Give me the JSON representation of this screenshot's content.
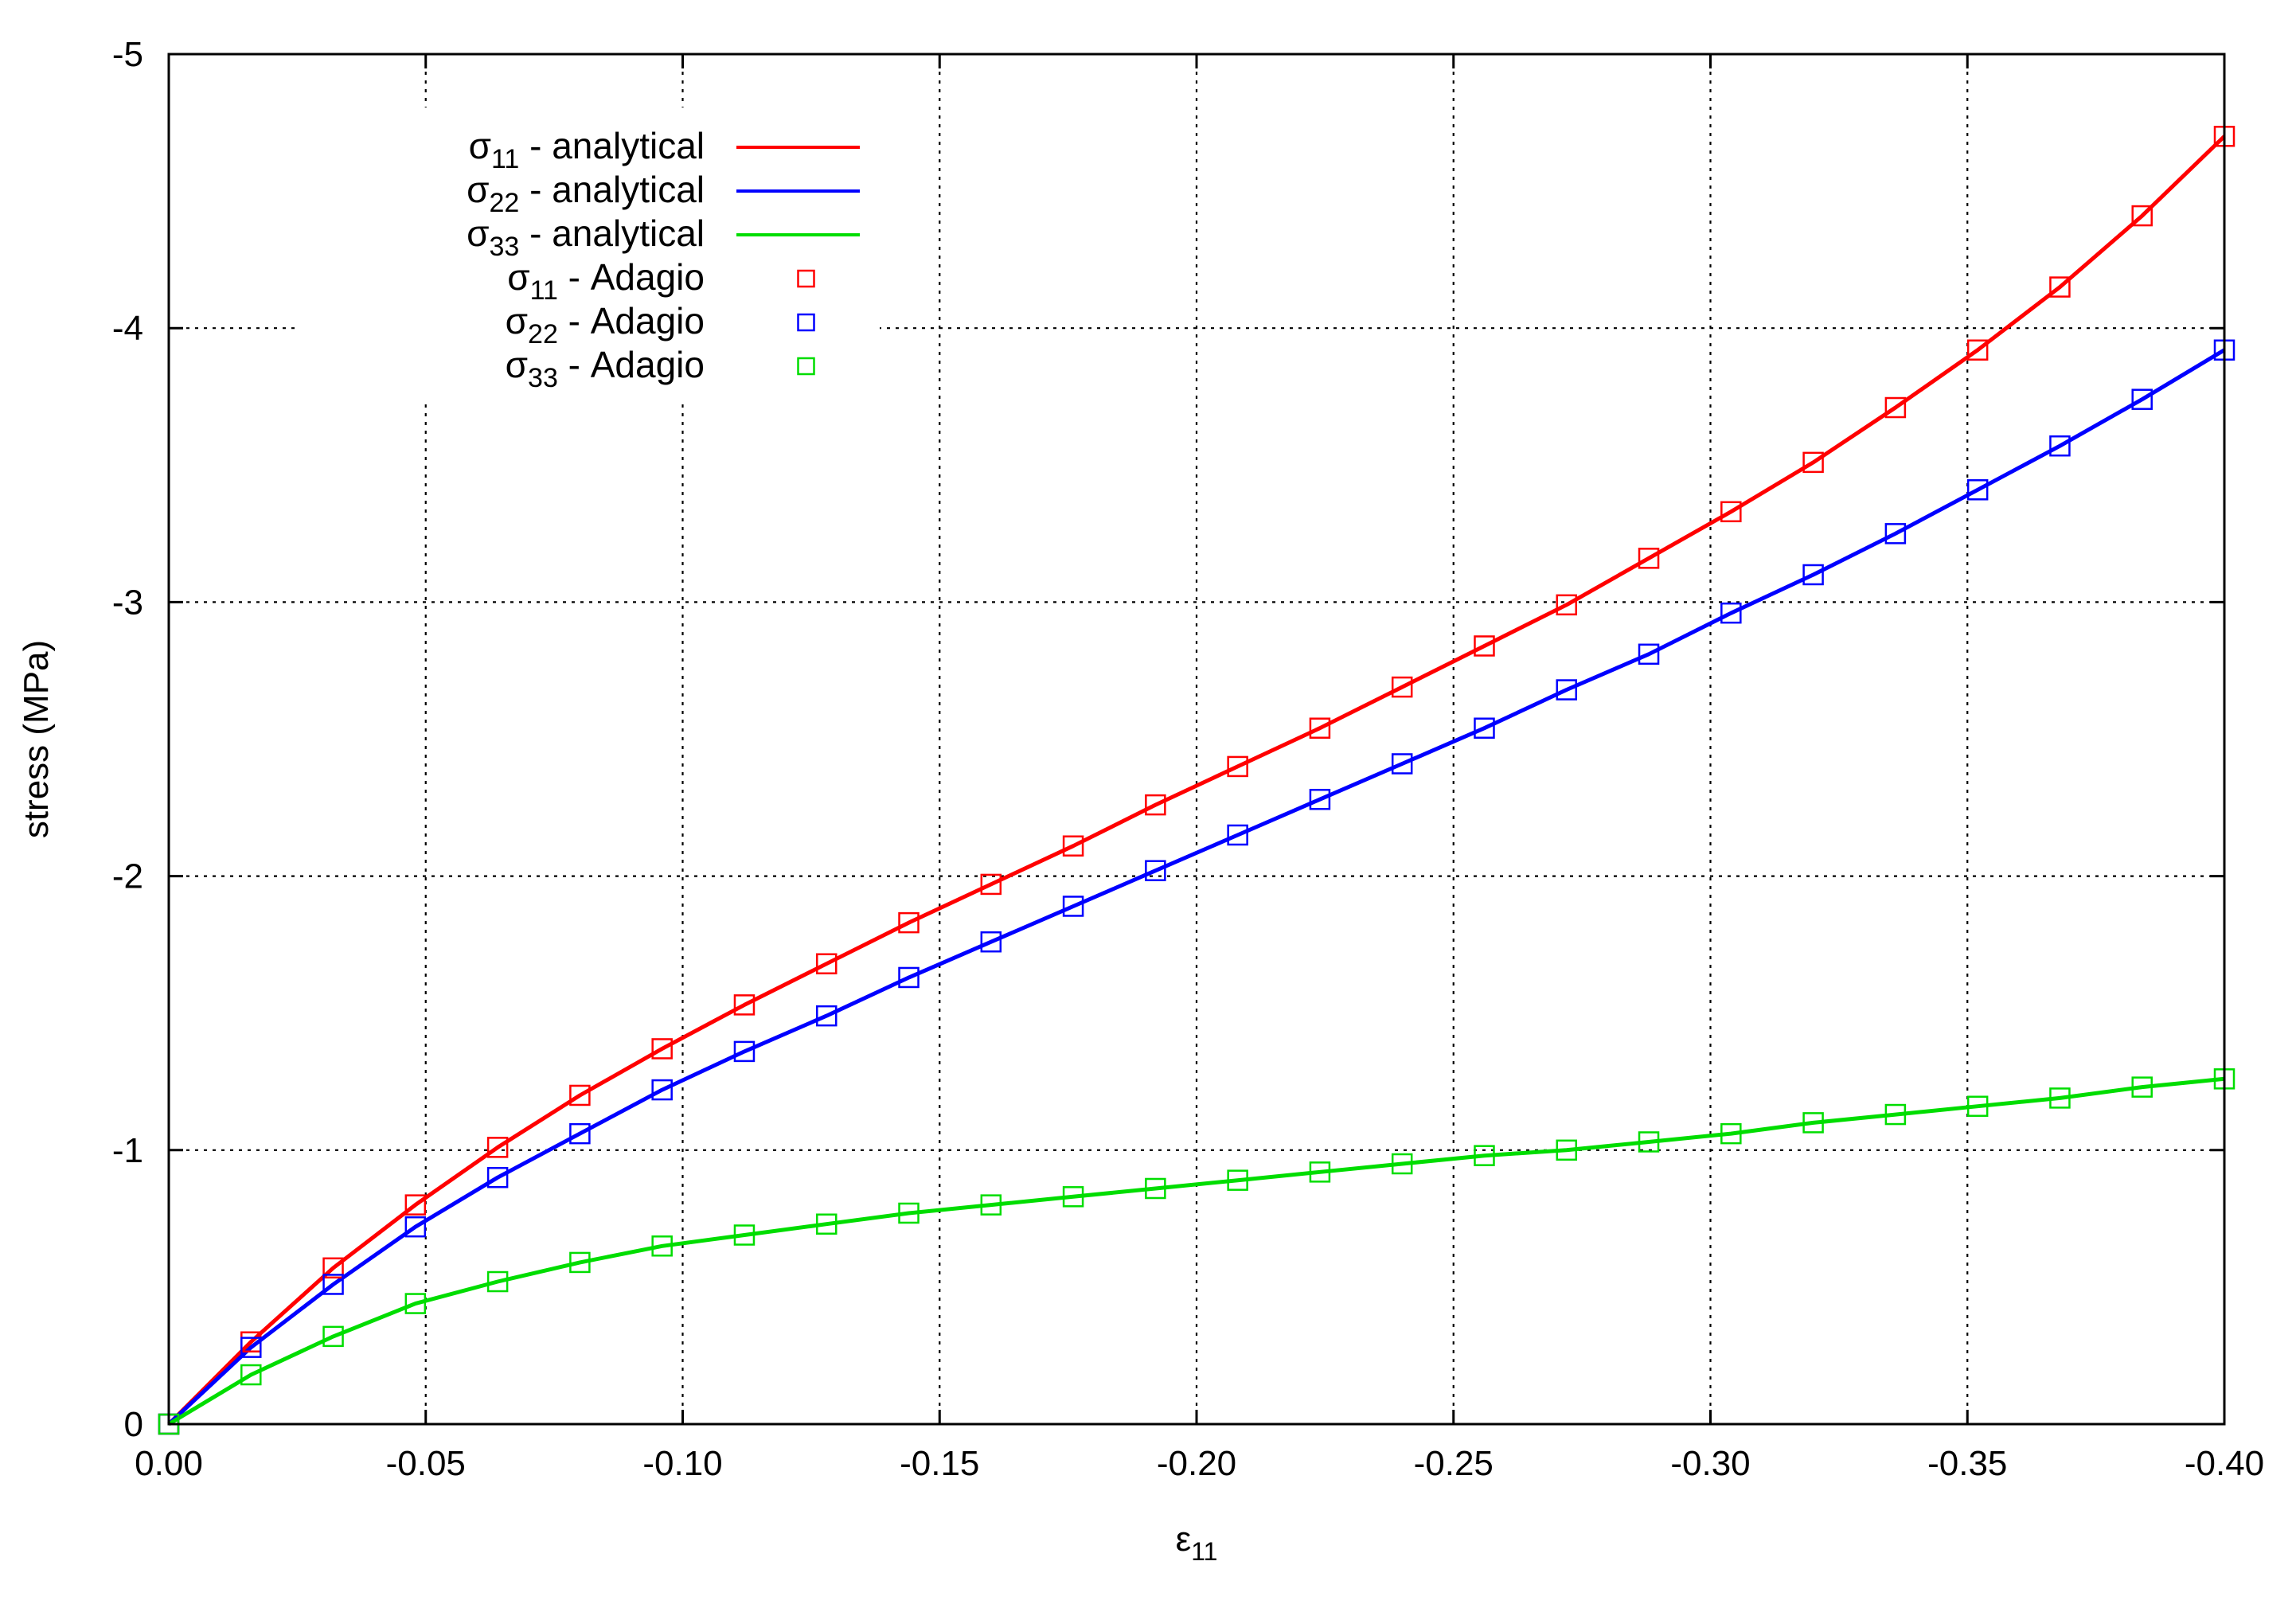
{
  "chart_data": {
    "type": "line",
    "title": "",
    "xlabel": "ε",
    "xlabel_sub": "11",
    "ylabel": "stress (MPa)",
    "xlim": [
      0.0,
      -0.4
    ],
    "ylim": [
      0,
      -5
    ],
    "x_ticks": [
      0.0,
      -0.05,
      -0.1,
      -0.15,
      -0.2,
      -0.25,
      -0.3,
      -0.35,
      -0.4
    ],
    "x_tick_labels": [
      "0.00",
      "-0.05",
      "-0.10",
      "-0.15",
      "-0.20",
      "-0.25",
      "-0.30",
      "-0.35",
      "-0.40"
    ],
    "y_ticks": [
      0,
      -1,
      -2,
      -3,
      -4,
      -5
    ],
    "y_tick_labels": [
      "0",
      "-1",
      "-2",
      "-3",
      "-4",
      "-5"
    ],
    "grid": true,
    "legend_position": "top-left",
    "x": [
      0,
      -0.016,
      -0.032,
      -0.048,
      -0.064,
      -0.08,
      -0.096,
      -0.112,
      -0.128,
      -0.144,
      -0.16,
      -0.176,
      -0.192,
      -0.208,
      -0.224,
      -0.24,
      -0.256,
      -0.272,
      -0.288,
      -0.304,
      -0.32,
      -0.336,
      -0.352,
      -0.368,
      -0.384,
      -0.4
    ],
    "series": [
      {
        "name": "σ",
        "name_sub": "11",
        "name_suffix": " - analytical",
        "style": "line",
        "color": "#ff0000",
        "values": [
          0,
          -0.3,
          -0.57,
          -0.8,
          -1.01,
          -1.2,
          -1.37,
          -1.53,
          -1.68,
          -1.83,
          -1.97,
          -2.11,
          -2.26,
          -2.4,
          -2.54,
          -2.69,
          -2.84,
          -2.99,
          -3.16,
          -3.33,
          -3.51,
          -3.71,
          -3.92,
          -4.15,
          -4.41,
          -4.7
        ]
      },
      {
        "name": "σ",
        "name_sub": "22",
        "name_suffix": " - analytical",
        "style": "line",
        "color": "#0000ff",
        "values": [
          0,
          -0.28,
          -0.51,
          -0.72,
          -0.9,
          -1.06,
          -1.22,
          -1.36,
          -1.49,
          -1.63,
          -1.76,
          -1.89,
          -2.02,
          -2.15,
          -2.28,
          -2.41,
          -2.54,
          -2.68,
          -2.81,
          -2.96,
          -3.1,
          -3.25,
          -3.41,
          -3.57,
          -3.74,
          -3.92
        ]
      },
      {
        "name": "σ",
        "name_sub": "33",
        "name_suffix": " - analytical",
        "style": "line",
        "color": "#00dd00",
        "values": [
          0,
          -0.18,
          -0.32,
          -0.44,
          -0.52,
          -0.59,
          -0.65,
          -0.69,
          -0.73,
          -0.77,
          -0.8,
          -0.83,
          -0.86,
          -0.89,
          -0.92,
          -0.95,
          -0.98,
          -1.0,
          -1.03,
          -1.06,
          -1.1,
          -1.13,
          -1.16,
          -1.19,
          -1.23,
          -1.26
        ]
      },
      {
        "name": "σ",
        "name_sub": "11",
        "name_suffix": " - Adagio",
        "style": "markers",
        "color": "#ff0000",
        "values": [
          0,
          -0.3,
          -0.57,
          -0.8,
          -1.01,
          -1.2,
          -1.37,
          -1.53,
          -1.68,
          -1.83,
          -1.97,
          -2.11,
          -2.26,
          -2.4,
          -2.54,
          -2.69,
          -2.84,
          -2.99,
          -3.16,
          -3.33,
          -3.51,
          -3.71,
          -3.92,
          -4.15,
          -4.41,
          -4.7
        ]
      },
      {
        "name": "σ",
        "name_sub": "22",
        "name_suffix": " - Adagio",
        "style": "markers",
        "color": "#0000ff",
        "values": [
          0,
          -0.28,
          -0.51,
          -0.72,
          -0.9,
          -1.06,
          -1.22,
          -1.36,
          -1.49,
          -1.63,
          -1.76,
          -1.89,
          -2.02,
          -2.15,
          -2.28,
          -2.41,
          -2.54,
          -2.68,
          -2.81,
          -2.96,
          -3.1,
          -3.25,
          -3.41,
          -3.57,
          -3.74,
          -3.92
        ]
      },
      {
        "name": "σ",
        "name_sub": "33",
        "name_suffix": " - Adagio",
        "style": "markers",
        "color": "#00dd00",
        "values": [
          0,
          -0.18,
          -0.32,
          -0.44,
          -0.52,
          -0.59,
          -0.65,
          -0.69,
          -0.73,
          -0.77,
          -0.8,
          -0.83,
          -0.86,
          -0.89,
          -0.92,
          -0.95,
          -0.98,
          -1.0,
          -1.03,
          -1.06,
          -1.1,
          -1.13,
          -1.16,
          -1.19,
          -1.23,
          -1.26
        ]
      }
    ]
  }
}
